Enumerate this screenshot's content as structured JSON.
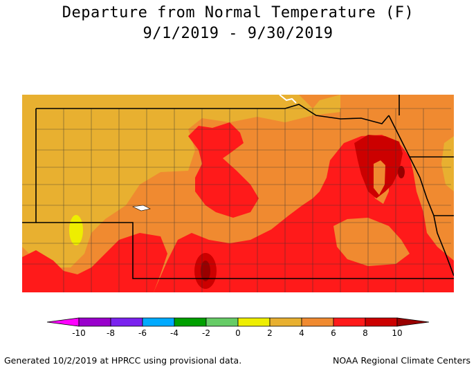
{
  "title": "Departure from Normal Temperature (F)",
  "date_range": "9/1/2019 - 9/30/2019",
  "legend": {
    "ticks": [
      "-10",
      "-8",
      "-6",
      "-4",
      "-2",
      "0",
      "2",
      "4",
      "6",
      "8",
      "10"
    ],
    "colors": [
      "#ff00ff",
      "#9900cc",
      "#7a22ee",
      "#00aaff",
      "#00a000",
      "#66cc66",
      "#eeee00",
      "#e8b030",
      "#f08a30",
      "#ff1a1a",
      "#cc0000",
      "#990000"
    ]
  },
  "map_colors": {
    "below_2_to_4": "#e8b030",
    "band_0_to_2": "#eeee00",
    "band_4_to_6": "#f08a30",
    "band_6_to_8": "#ff1a1a",
    "band_8_to_10": "#cc0000",
    "band_above_10": "#990000"
  },
  "footer": {
    "left": "Generated 10/2/2019 at HPRCC using provisional data.",
    "right": "NOAA Regional Climate Centers"
  }
}
